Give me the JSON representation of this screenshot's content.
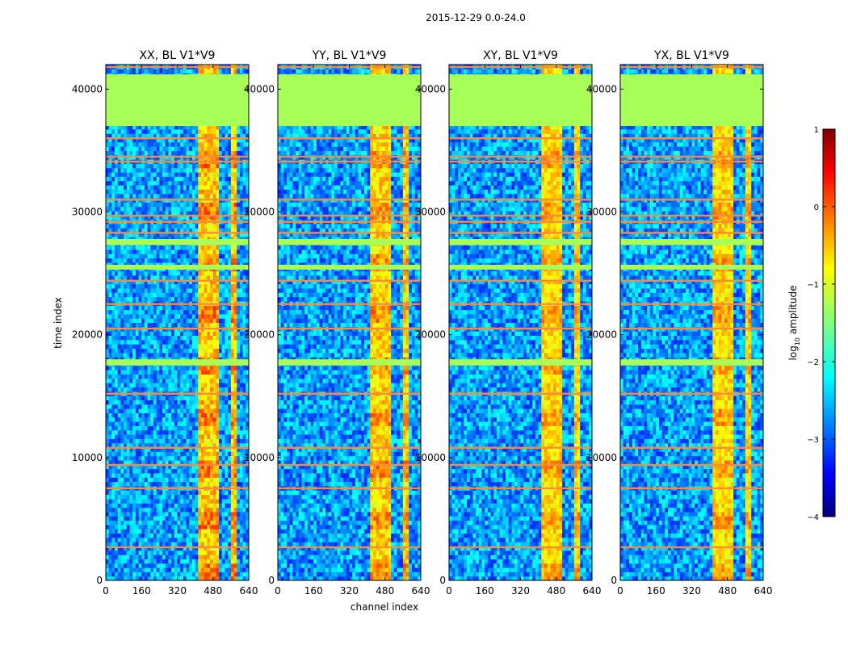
{
  "chart_data": {
    "type": "heatmap",
    "suptitle": "2015-12-29 0.0-24.0",
    "xlabel": "channel index",
    "ylabel": "time index",
    "xlim": [
      0,
      640
    ],
    "ylim": [
      0,
      42000
    ],
    "xticks": [
      "0",
      "160",
      "320",
      "480",
      "640"
    ],
    "yticks": [
      "0",
      "10000",
      "20000",
      "30000",
      "40000"
    ],
    "xtick_values": [
      0,
      160,
      320,
      480,
      640
    ],
    "ytick_values": [
      0,
      10000,
      20000,
      30000,
      40000
    ],
    "panels": [
      {
        "title": "XX, BL V1*V9",
        "band_strength": 1.0
      },
      {
        "title": "YY, BL V1*V9",
        "band_strength": 0.9
      },
      {
        "title": "XY, BL V1*V9",
        "band_strength": 0.8
      },
      {
        "title": "YX, BL V1*V9",
        "band_strength": 0.8
      }
    ],
    "flagged_time_ranges": [
      [
        37000,
        41200
      ],
      [
        17500,
        18000
      ],
      [
        27300,
        27800
      ],
      [
        25300,
        25700
      ]
    ],
    "flagged_value": -1.3,
    "rfi_rows": [
      41800,
      36000,
      34500,
      34100,
      31000,
      29700,
      29200,
      28300,
      24400,
      22500,
      20500,
      15200,
      10800,
      9400,
      7500,
      2700
    ],
    "strong_channel_ranges": [
      [
        410,
        460
      ],
      [
        460,
        510
      ],
      [
        560,
        580
      ]
    ],
    "colorbar": {
      "label": "log",
      "label_sub": "10",
      "label_tail": " amplitude",
      "range": [
        -4,
        1
      ],
      "ticks": [
        "1",
        "0",
        "−1",
        "−2",
        "−3",
        "−4"
      ],
      "tick_values": [
        1,
        0,
        -1,
        -2,
        -3,
        -4
      ],
      "colormap": "jet"
    }
  },
  "colors": {
    "flag_fill": "#9BFF5A",
    "rfi_line": "#FF8A3C",
    "background": "#0a2bff"
  }
}
